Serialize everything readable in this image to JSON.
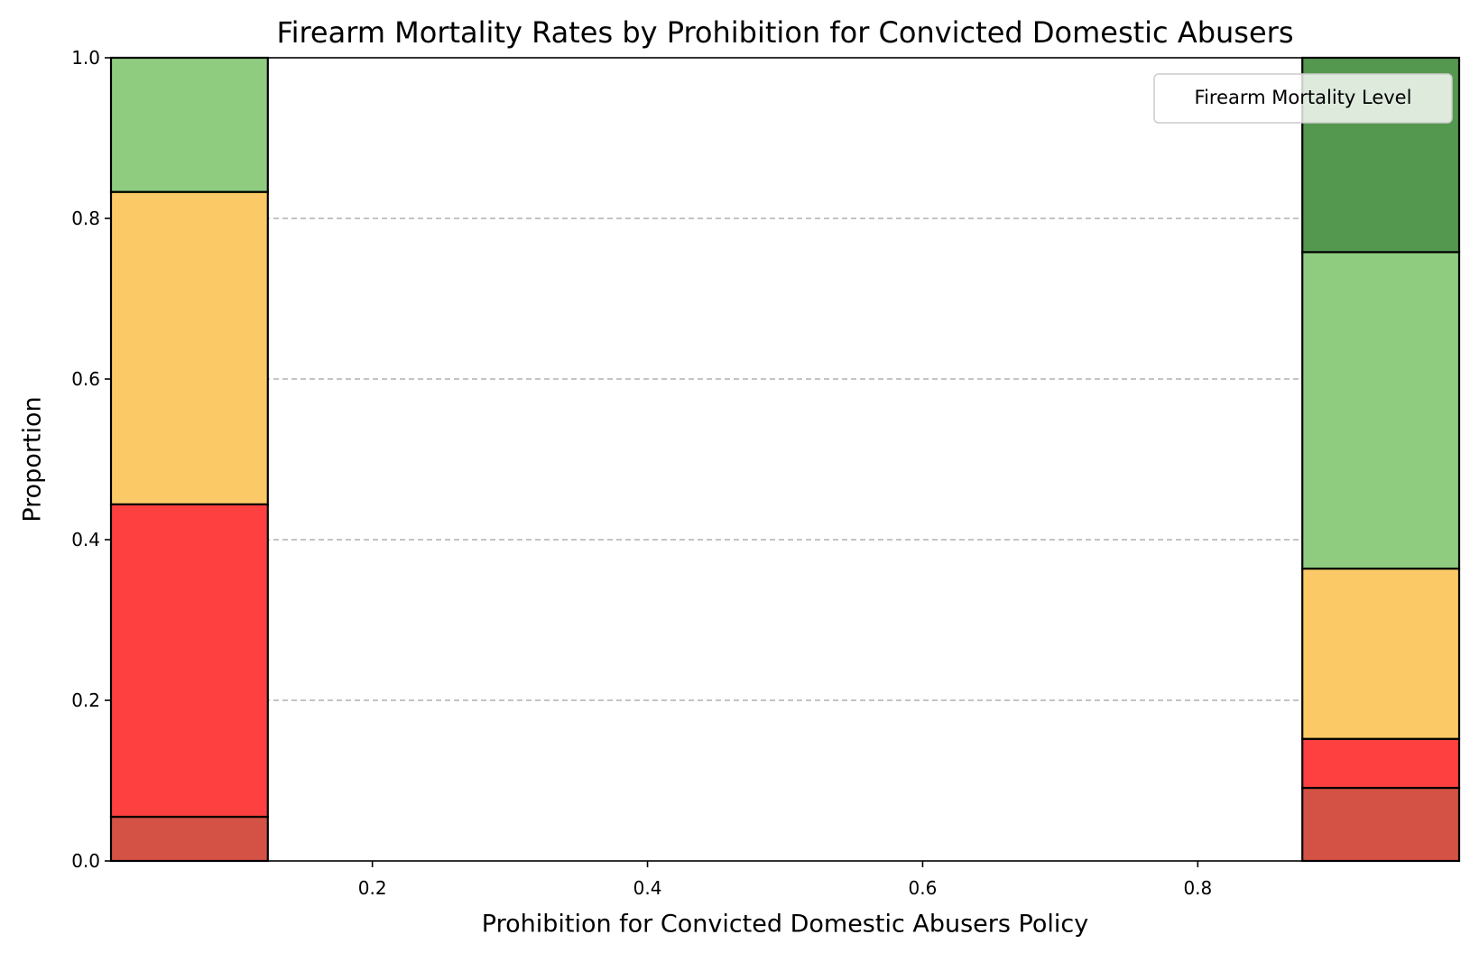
{
  "chart_data": {
    "type": "bar",
    "stacked": true,
    "title": "Firearm Mortality Rates by Prohibition for Convicted Domestic Abusers",
    "xlabel": "Prohibition for Convicted Domestic Abusers Policy",
    "ylabel": "Proportion",
    "xlim": [
      0.01,
      0.99
    ],
    "ylim": [
      0,
      1
    ],
    "xticks": [
      "0.2",
      "0.4",
      "0.6",
      "0.8"
    ],
    "yticks": [
      "0.0",
      "0.2",
      "0.4",
      "0.6",
      "0.8",
      "1.0"
    ],
    "grid": "y dashed",
    "legend": {
      "title": "Firearm Mortality Level",
      "placement": "top-right"
    },
    "bins": [
      {
        "x_range": [
          0.01,
          0.124
        ],
        "segments": [
          {
            "color": "#d35245",
            "from": 0.0,
            "to": 0.055
          },
          {
            "color": "#ff4040",
            "from": 0.055,
            "to": 0.444
          },
          {
            "color": "#fbc966",
            "from": 0.444,
            "to": 0.833
          },
          {
            "color": "#8fcc80",
            "from": 0.833,
            "to": 1.0
          }
        ]
      },
      {
        "x_range": [
          0.876,
          0.99
        ],
        "segments": [
          {
            "color": "#d35245",
            "from": 0.0,
            "to": 0.091
          },
          {
            "color": "#ff4040",
            "from": 0.091,
            "to": 0.152
          },
          {
            "color": "#fbc966",
            "from": 0.152,
            "to": 0.364
          },
          {
            "color": "#8fcc80",
            "from": 0.364,
            "to": 0.758
          },
          {
            "color": "#54974f",
            "from": 0.758,
            "to": 1.0
          }
        ]
      }
    ]
  }
}
